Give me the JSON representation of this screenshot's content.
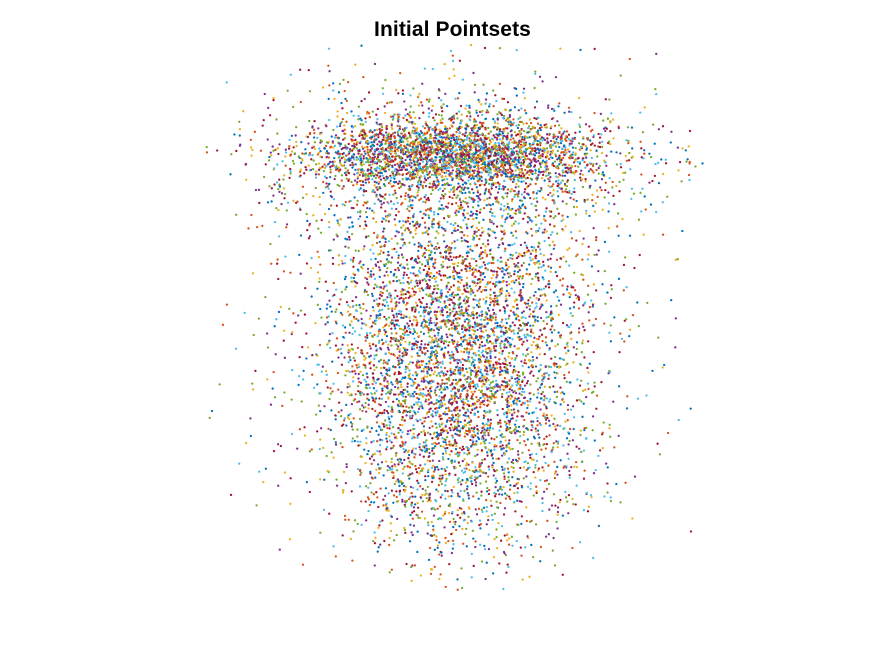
{
  "chart_data": {
    "type": "scatter",
    "title": "Initial Pointsets",
    "xlabel": "",
    "ylabel": "",
    "axes_visible": false,
    "grid": false,
    "legend": "none",
    "xlim": [
      -1,
      1
    ],
    "ylim": [
      -1,
      1
    ],
    "palette": [
      "#0072BD",
      "#D95319",
      "#EDB120",
      "#7E2F8E",
      "#77AC30",
      "#4DBEEE",
      "#A2142F"
    ],
    "series": [
      {
        "color": "#0072BD",
        "points": [
          [
            -0.52,
            0.62
          ],
          [
            -0.41,
            0.55
          ],
          [
            -0.3,
            0.63
          ],
          [
            -0.18,
            0.58
          ],
          [
            -0.05,
            0.66
          ],
          [
            0.08,
            0.6
          ],
          [
            0.21,
            0.57
          ],
          [
            0.33,
            0.62
          ],
          [
            0.44,
            0.52
          ],
          [
            -0.36,
            0.1
          ],
          [
            -0.2,
            -0.12
          ],
          [
            0.02,
            0.05
          ],
          [
            0.18,
            -0.2
          ],
          [
            0.31,
            -0.35
          ],
          [
            -0.09,
            -0.48
          ],
          [
            0.05,
            -0.62
          ],
          [
            -0.27,
            -0.7
          ],
          [
            0.42,
            -0.15
          ],
          [
            -0.7,
            0.48
          ],
          [
            0.7,
            0.3
          ]
        ]
      },
      {
        "color": "#D95319",
        "points": [
          [
            -0.47,
            0.66
          ],
          [
            -0.34,
            0.59
          ],
          [
            -0.22,
            0.7
          ],
          [
            -0.1,
            0.61
          ],
          [
            0.02,
            0.57
          ],
          [
            0.14,
            0.65
          ],
          [
            0.27,
            0.6
          ],
          [
            0.39,
            0.56
          ],
          [
            -0.3,
            -0.05
          ],
          [
            -0.12,
            0.02
          ],
          [
            0.1,
            -0.1
          ],
          [
            0.25,
            -0.45
          ],
          [
            -0.18,
            -0.55
          ],
          [
            0.36,
            -0.6
          ],
          [
            -0.4,
            -0.3
          ],
          [
            0.48,
            0.1
          ],
          [
            -0.02,
            -0.75
          ]
        ]
      },
      {
        "color": "#EDB120",
        "points": [
          [
            -0.44,
            0.58
          ],
          [
            -0.28,
            0.66
          ],
          [
            -0.14,
            0.54
          ],
          [
            0.0,
            0.63
          ],
          [
            0.12,
            0.58
          ],
          [
            0.24,
            0.68
          ],
          [
            0.37,
            0.59
          ],
          [
            -0.25,
            0.25
          ],
          [
            0.05,
            0.3
          ],
          [
            0.22,
            0.15
          ],
          [
            -0.05,
            -0.3
          ],
          [
            0.15,
            -0.55
          ],
          [
            -0.32,
            -0.5
          ],
          [
            0.4,
            -0.4
          ],
          [
            0.55,
            0.45
          ]
        ]
      },
      {
        "color": "#7E2F8E",
        "points": [
          [
            -0.5,
            0.57
          ],
          [
            -0.38,
            0.64
          ],
          [
            -0.24,
            0.56
          ],
          [
            -0.08,
            0.68
          ],
          [
            0.06,
            0.55
          ],
          [
            0.19,
            0.62
          ],
          [
            0.3,
            0.54
          ],
          [
            -0.15,
            0.2
          ],
          [
            0.12,
            0.1
          ],
          [
            -0.28,
            -0.22
          ],
          [
            0.28,
            -0.25
          ],
          [
            -0.1,
            -0.65
          ],
          [
            0.2,
            -0.7
          ],
          [
            0.45,
            -0.5
          ],
          [
            -0.45,
            -0.1
          ]
        ]
      },
      {
        "color": "#77AC30",
        "points": [
          [
            -0.42,
            0.61
          ],
          [
            -0.26,
            0.56
          ],
          [
            -0.12,
            0.65
          ],
          [
            0.04,
            0.59
          ],
          [
            0.17,
            0.55
          ],
          [
            0.29,
            0.66
          ],
          [
            -0.2,
            0.32
          ],
          [
            0.08,
            -0.05
          ],
          [
            -0.35,
            -0.4
          ],
          [
            0.33,
            -0.1
          ],
          [
            0.0,
            -0.4
          ],
          [
            -0.2,
            -0.78
          ],
          [
            0.3,
            -0.75
          ]
        ]
      },
      {
        "color": "#4DBEEE",
        "points": [
          [
            -0.48,
            0.63
          ],
          [
            -0.32,
            0.57
          ],
          [
            -0.16,
            0.62
          ],
          [
            -0.02,
            0.56
          ],
          [
            0.1,
            0.67
          ],
          [
            0.23,
            0.58
          ],
          [
            0.35,
            0.65
          ],
          [
            -0.05,
            0.4
          ],
          [
            0.2,
            0.35
          ],
          [
            -0.22,
            -0.15
          ],
          [
            0.06,
            -0.22
          ],
          [
            0.38,
            -0.3
          ],
          [
            -0.38,
            -0.62
          ],
          [
            0.12,
            -0.85
          ],
          [
            -0.72,
            0.35
          ],
          [
            0.62,
            -0.2
          ]
        ]
      },
      {
        "color": "#A2142F",
        "points": [
          [
            -0.45,
            0.6
          ],
          [
            -0.33,
            0.68
          ],
          [
            -0.19,
            0.59
          ],
          [
            -0.06,
            0.57
          ],
          [
            0.07,
            0.64
          ],
          [
            0.2,
            0.56
          ],
          [
            0.32,
            0.61
          ],
          [
            -0.1,
            0.15
          ],
          [
            0.15,
            0.22
          ],
          [
            -0.3,
            -0.35
          ],
          [
            0.22,
            -0.38
          ],
          [
            -0.05,
            -0.58
          ],
          [
            0.35,
            -0.55
          ],
          [
            0.5,
            -0.25
          ]
        ]
      }
    ]
  }
}
